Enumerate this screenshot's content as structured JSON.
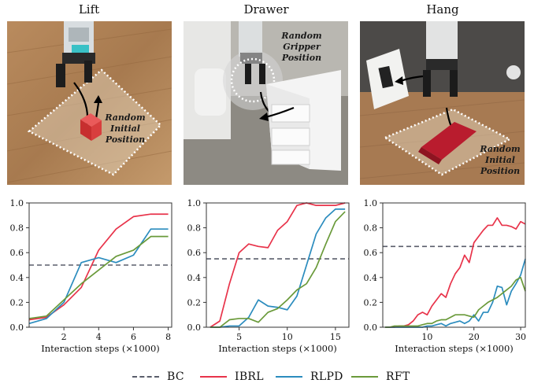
{
  "colors": {
    "BC": "#5a5e6b",
    "IBRL": "#e8334a",
    "RLPD": "#2b8cbe",
    "RFT": "#6a9a3a"
  },
  "tasks": [
    {
      "title": "Lift",
      "annotation": [
        "Random",
        "Initial",
        "Position"
      ]
    },
    {
      "title": "Drawer",
      "annotation": [
        "Random",
        "Gripper",
        "Position"
      ]
    },
    {
      "title": "Hang",
      "annotation": [
        "Random",
        "Initial",
        "Position"
      ]
    }
  ],
  "legend": [
    {
      "name": "BC",
      "style": "dashed"
    },
    {
      "name": "IBRL",
      "style": "solid"
    },
    {
      "name": "RLPD",
      "style": "solid"
    },
    {
      "name": "RFT",
      "style": "solid"
    }
  ],
  "chart_data": [
    {
      "type": "line",
      "title": "Lift",
      "xlabel": "Interaction steps (×1000)",
      "ylabel": "",
      "xlim": [
        0,
        8.2
      ],
      "ylim": [
        0,
        1.0
      ],
      "xticks": [
        2,
        4,
        6,
        8
      ],
      "yticks": [
        0.0,
        0.2,
        0.4,
        0.6,
        0.8,
        1.0
      ],
      "ytick_labels": [
        "0.0",
        "0.2",
        "0.4",
        "0.6",
        "0.8",
        "1.0"
      ],
      "grid": false,
      "series": [
        {
          "name": "BC",
          "x": [
            0,
            8.2
          ],
          "y": [
            0.5,
            0.5
          ]
        },
        {
          "name": "IBRL",
          "x": [
            0,
            1,
            2,
            3,
            4,
            5,
            6,
            7,
            8
          ],
          "y": [
            0.06,
            0.08,
            0.18,
            0.32,
            0.62,
            0.79,
            0.89,
            0.91,
            0.91
          ]
        },
        {
          "name": "RLPD",
          "x": [
            0,
            1,
            2,
            3,
            4,
            5,
            6,
            7,
            8
          ],
          "y": [
            0.03,
            0.07,
            0.2,
            0.52,
            0.56,
            0.52,
            0.58,
            0.79,
            0.79
          ]
        },
        {
          "name": "RFT",
          "x": [
            0,
            1,
            2,
            3,
            4,
            5,
            6,
            7,
            8
          ],
          "y": [
            0.07,
            0.09,
            0.22,
            0.35,
            0.46,
            0.57,
            0.62,
            0.73,
            0.73
          ]
        }
      ]
    },
    {
      "type": "line",
      "title": "Drawer",
      "xlabel": "Interaction steps (×1000)",
      "ylabel": "",
      "xlim": [
        1.6,
        16.4
      ],
      "ylim": [
        0,
        1.0
      ],
      "xticks": [
        5,
        10,
        15
      ],
      "yticks": [
        0.0,
        0.2,
        0.4,
        0.6,
        0.8,
        1.0
      ],
      "ytick_labels": [
        "0.0",
        "0.2",
        "0.4",
        "0.6",
        "0.8",
        "1.0"
      ],
      "grid": false,
      "series": [
        {
          "name": "BC",
          "x": [
            1.6,
            16.4
          ],
          "y": [
            0.55,
            0.55
          ]
        },
        {
          "name": "IBRL",
          "x": [
            2,
            3,
            4,
            5,
            6,
            7,
            8,
            9,
            10,
            11,
            12,
            13,
            14,
            15,
            16
          ],
          "y": [
            0.0,
            0.05,
            0.35,
            0.6,
            0.67,
            0.65,
            0.64,
            0.78,
            0.85,
            0.98,
            1.0,
            0.98,
            0.98,
            0.98,
            1.0
          ]
        },
        {
          "name": "RLPD",
          "x": [
            2,
            3,
            4,
            5,
            6,
            7,
            8,
            9,
            10,
            11,
            12,
            13,
            14,
            15,
            16
          ],
          "y": [
            0.0,
            0.0,
            0.01,
            0.01,
            0.08,
            0.22,
            0.17,
            0.16,
            0.14,
            0.25,
            0.5,
            0.75,
            0.88,
            0.95,
            0.95
          ]
        },
        {
          "name": "RFT",
          "x": [
            2,
            3,
            4,
            5,
            6,
            7,
            8,
            9,
            10,
            11,
            12,
            13,
            14,
            15,
            16
          ],
          "y": [
            0.0,
            0.0,
            0.06,
            0.07,
            0.07,
            0.04,
            0.12,
            0.15,
            0.22,
            0.3,
            0.35,
            0.48,
            0.67,
            0.85,
            0.93
          ]
        }
      ]
    },
    {
      "type": "line",
      "title": "Hang",
      "xlabel": "Interaction steps (×1000)",
      "ylabel": "",
      "xlim": [
        0.5,
        31
      ],
      "ylim": [
        0,
        1.0
      ],
      "xticks": [
        10,
        20,
        30
      ],
      "yticks": [
        0.0,
        0.2,
        0.4,
        0.6,
        0.8,
        1.0
      ],
      "ytick_labels": [
        "0.0",
        "0.2",
        "0.4",
        "0.6",
        "0.8",
        "1.0"
      ],
      "grid": false,
      "series": [
        {
          "name": "BC",
          "x": [
            0.5,
            31
          ],
          "y": [
            0.65,
            0.65
          ]
        },
        {
          "name": "IBRL",
          "x": [
            1,
            2,
            3,
            4,
            5,
            6,
            7,
            8,
            9,
            10,
            11,
            12,
            13,
            14,
            15,
            16,
            17,
            18,
            19,
            20,
            21,
            22,
            23,
            24,
            25,
            26,
            27,
            28,
            29,
            30,
            31
          ],
          "y": [
            0.0,
            0.0,
            0.0,
            0.01,
            0.01,
            0.02,
            0.05,
            0.1,
            0.12,
            0.1,
            0.17,
            0.22,
            0.27,
            0.24,
            0.35,
            0.43,
            0.48,
            0.58,
            0.52,
            0.68,
            0.73,
            0.78,
            0.82,
            0.82,
            0.88,
            0.82,
            0.82,
            0.81,
            0.79,
            0.85,
            0.83
          ]
        },
        {
          "name": "RLPD",
          "x": [
            1,
            2,
            3,
            4,
            5,
            6,
            7,
            8,
            9,
            10,
            11,
            12,
            13,
            14,
            15,
            16,
            17,
            18,
            19,
            20,
            21,
            22,
            23,
            24,
            25,
            26,
            27,
            28,
            29,
            30,
            31
          ],
          "y": [
            0.0,
            0.0,
            0.0,
            0.0,
            0.0,
            0.0,
            0.0,
            0.0,
            0.0,
            0.01,
            0.01,
            0.02,
            0.03,
            0.01,
            0.03,
            0.04,
            0.05,
            0.03,
            0.05,
            0.1,
            0.05,
            0.12,
            0.12,
            0.2,
            0.33,
            0.32,
            0.18,
            0.29,
            0.35,
            0.42,
            0.55
          ]
        },
        {
          "name": "RFT",
          "x": [
            1,
            2,
            3,
            4,
            5,
            6,
            7,
            8,
            9,
            10,
            11,
            12,
            13,
            14,
            15,
            16,
            17,
            18,
            19,
            20,
            21,
            22,
            23,
            24,
            25,
            26,
            27,
            28,
            29,
            30,
            31
          ],
          "y": [
            0.0,
            0.0,
            0.01,
            0.01,
            0.01,
            0.01,
            0.01,
            0.01,
            0.02,
            0.03,
            0.03,
            0.05,
            0.06,
            0.06,
            0.08,
            0.1,
            0.1,
            0.1,
            0.09,
            0.08,
            0.14,
            0.17,
            0.2,
            0.22,
            0.24,
            0.27,
            0.3,
            0.33,
            0.38,
            0.4,
            0.29
          ]
        }
      ]
    }
  ]
}
